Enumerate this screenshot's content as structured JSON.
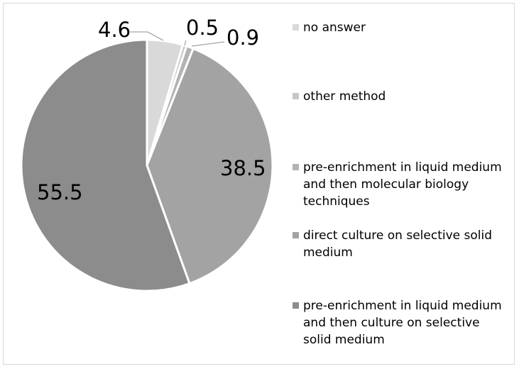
{
  "chart_data": {
    "type": "pie",
    "start_angle_deg": 0,
    "direction": "clockwise",
    "legend_position": "right",
    "slices": [
      {
        "label": "no answer",
        "value": 4.6,
        "color": "#d9d9d9"
      },
      {
        "label": "other method",
        "value": 0.5,
        "color": "#c8c8c8"
      },
      {
        "label": "pre-enrichment in liquid medium and then molecular biology techniques",
        "value": 0.9,
        "color": "#b3b3b3"
      },
      {
        "label": "direct culture on selective solid medium",
        "value": 38.5,
        "color": "#a3a3a3"
      },
      {
        "label": "pre-enrichment in liquid medium and then culture on selective solid medium",
        "value": 55.5,
        "color": "#8c8c8c"
      }
    ],
    "data_labels": [
      "4.6",
      "0.5",
      "0.9",
      "38.5",
      "55.5"
    ],
    "legend": [
      {
        "lines": [
          "no answer"
        ],
        "color": "#d9d9d9"
      },
      {
        "lines": [
          "other method"
        ],
        "color": "#c8c8c8"
      },
      {
        "lines": [
          "pre-enrichment in liquid medium",
          "and then molecular biology",
          "techniques"
        ],
        "color": "#b3b3b3"
      },
      {
        "lines": [
          "direct culture on selective solid",
          "medium"
        ],
        "color": "#a3a3a3"
      },
      {
        "lines": [
          "pre-enrichment in liquid medium",
          "and then culture on selective",
          "solid medium"
        ],
        "color": "#8c8c8c"
      }
    ]
  }
}
